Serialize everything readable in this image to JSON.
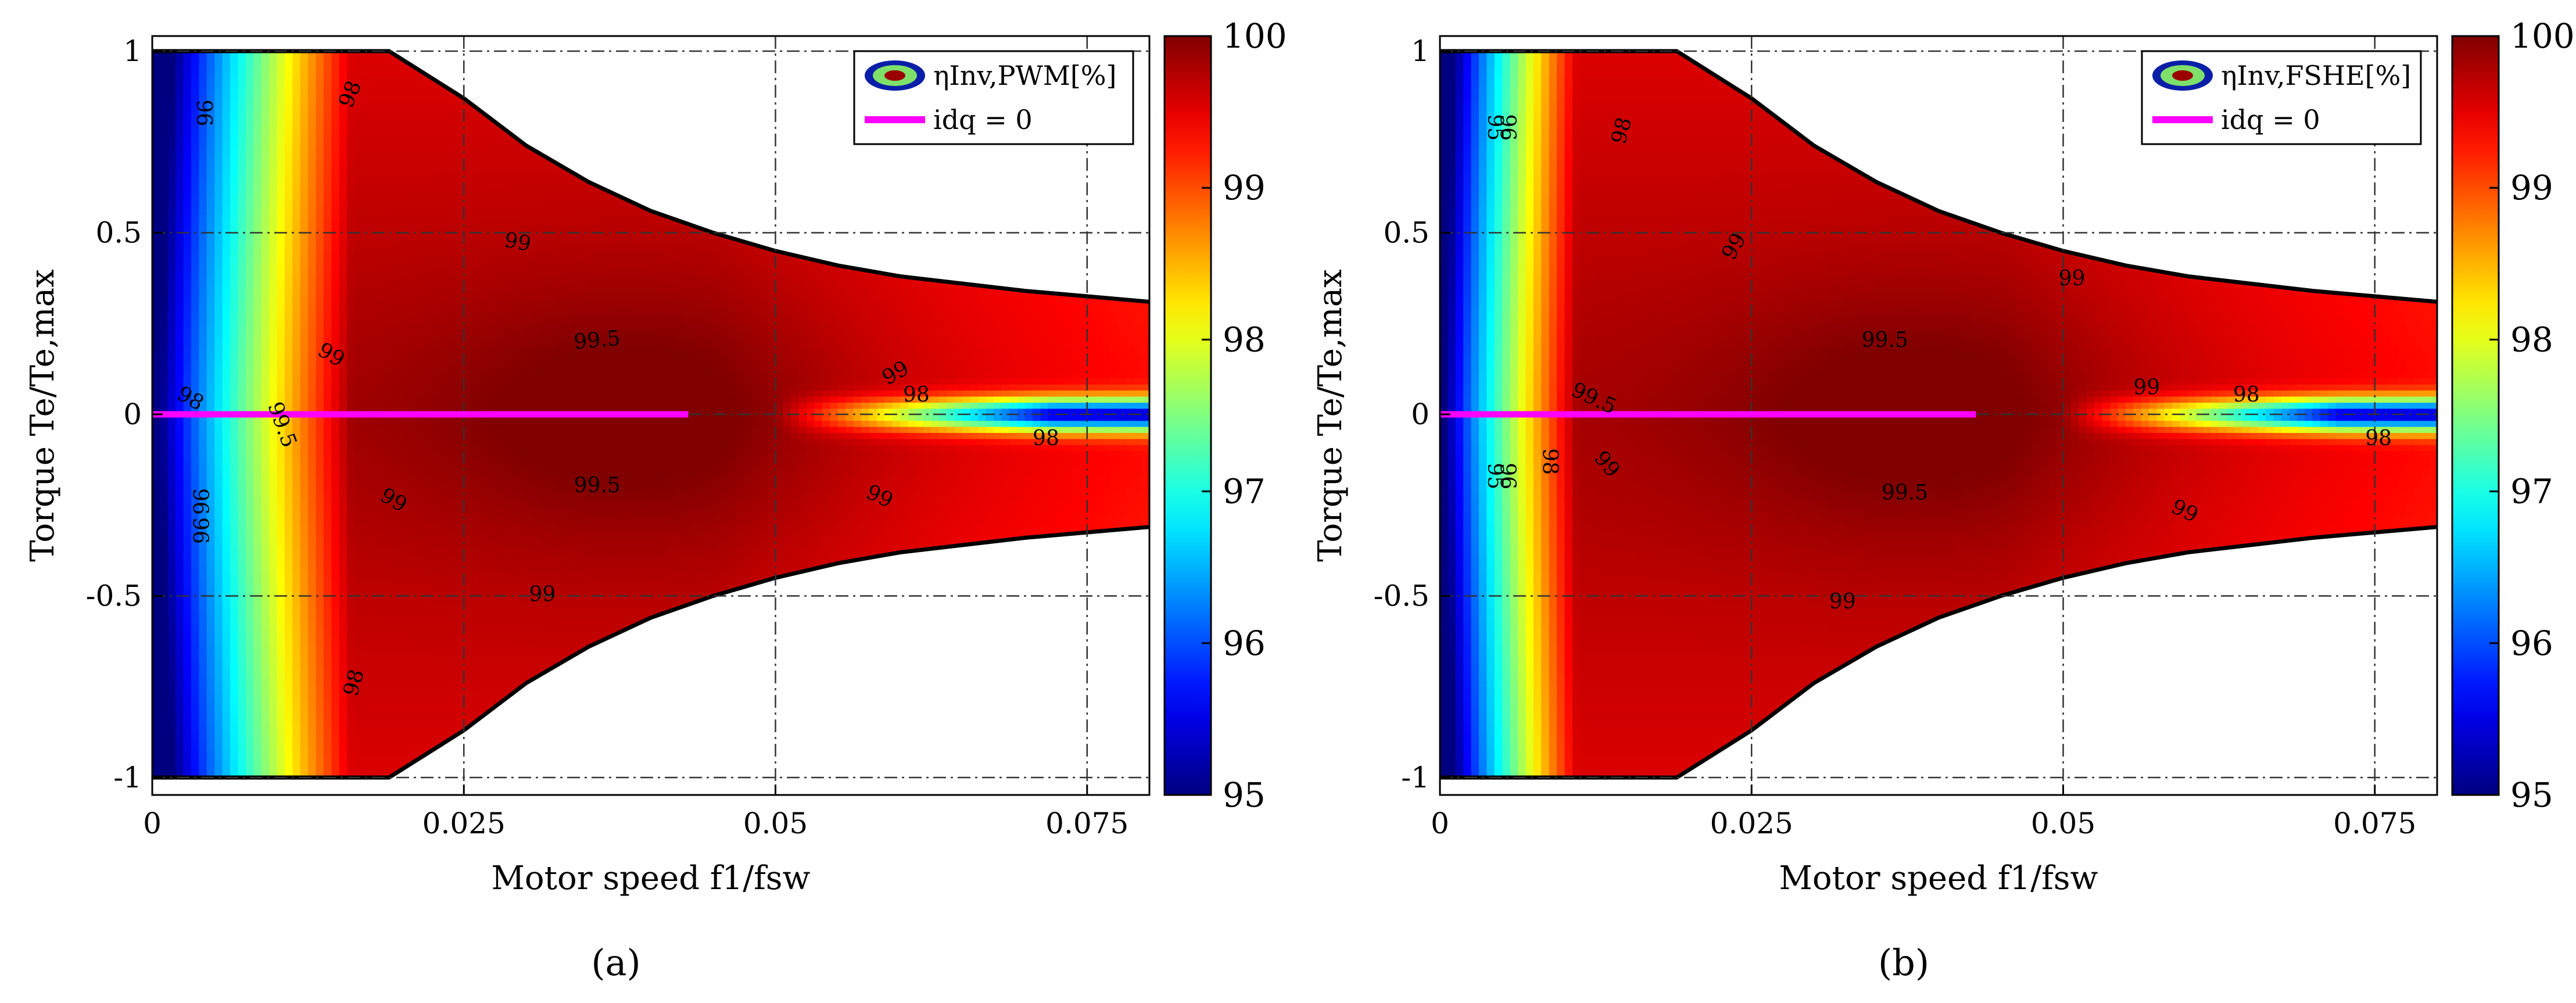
{
  "chart_data": [
    {
      "type": "heatmap",
      "panel_label": "(a)",
      "title": "",
      "xlabel": "Motor speed f1/fsw",
      "ylabel": "Torque Te/Te,max",
      "xlim": [
        0,
        0.08
      ],
      "ylim": [
        -1.05,
        1.05
      ],
      "x_ticks": [
        0,
        0.025,
        0.05,
        0.075
      ],
      "x_tick_labels": [
        "0",
        "0.025",
        "0.05",
        "0.075"
      ],
      "y_ticks": [
        1,
        0.5,
        0,
        -0.5,
        -1
      ],
      "y_tick_labels": [
        "1",
        "0.5",
        "0",
        "-0.5",
        "-1"
      ],
      "grid": true,
      "colorbar": {
        "min": 95,
        "max": 100,
        "ticks": [
          100,
          99,
          98,
          97,
          96,
          95
        ],
        "tick_labels": [
          "100",
          "99",
          "98",
          "97",
          "96",
          "95"
        ]
      },
      "legend": [
        {
          "label": "ηInv,PWM[%]",
          "kind": "contour-icon"
        },
        {
          "label": "idq = 0",
          "kind": "line",
          "color": "#ff00ff"
        }
      ],
      "zero_current_line": {
        "x_start": 0,
        "x_end": 0.043,
        "y": 0
      },
      "feasible_envelope": [
        [
          0.0,
          1.0
        ],
        [
          0.019,
          1.0
        ],
        [
          0.025,
          0.87
        ],
        [
          0.03,
          0.74
        ],
        [
          0.035,
          0.64
        ],
        [
          0.04,
          0.56
        ],
        [
          0.045,
          0.5
        ],
        [
          0.05,
          0.45
        ],
        [
          0.055,
          0.41
        ],
        [
          0.06,
          0.38
        ],
        [
          0.065,
          0.36
        ],
        [
          0.07,
          0.34
        ],
        [
          0.075,
          0.325
        ],
        [
          0.08,
          0.31
        ]
      ],
      "contours": [
        {
          "level": 96,
          "label": "96"
        },
        {
          "level": 98,
          "label": "98"
        },
        {
          "level": 99,
          "label": "99"
        },
        {
          "level": 99.5,
          "label": "99.5"
        }
      ],
      "contour_labels": [
        {
          "text": "96",
          "x": 0.004,
          "y": 0.83,
          "rot": 90
        },
        {
          "text": "98",
          "x": 0.016,
          "y": 0.88,
          "rot": -68
        },
        {
          "text": "99",
          "x": 0.0293,
          "y": 0.47,
          "rot": 10
        },
        {
          "text": "99",
          "x": 0.0143,
          "y": 0.16,
          "rot": 30
        },
        {
          "text": "99.5",
          "x": 0.0357,
          "y": 0.2,
          "rot": -5
        },
        {
          "text": "98",
          "x": 0.003,
          "y": 0.04,
          "rot": 30
        },
        {
          "text": "99.5",
          "x": 0.0103,
          "y": -0.03,
          "rot": 70
        },
        {
          "text": "99.5",
          "x": 0.0357,
          "y": -0.2,
          "rot": 0
        },
        {
          "text": "99",
          "x": 0.0193,
          "y": -0.24,
          "rot": 30
        },
        {
          "text": "99",
          "x": 0.0313,
          "y": -0.5,
          "rot": 0
        },
        {
          "text": "99",
          "x": 0.0597,
          "y": 0.11,
          "rot": -30
        },
        {
          "text": "98",
          "x": 0.0613,
          "y": 0.05,
          "rot": 0
        },
        {
          "text": "98",
          "x": 0.0717,
          "y": -0.07,
          "rot": 0
        },
        {
          "text": "99",
          "x": 0.0583,
          "y": -0.23,
          "rot": 25
        },
        {
          "text": "96",
          "x": 0.0037,
          "y": -0.24,
          "rot": 90
        },
        {
          "text": "96",
          "x": 0.0037,
          "y": -0.32,
          "rot": 90
        },
        {
          "text": "98",
          "x": 0.0163,
          "y": -0.74,
          "rot": -75
        }
      ]
    },
    {
      "type": "heatmap",
      "panel_label": "(b)",
      "title": "",
      "xlabel": "Motor speed f1/fsw",
      "ylabel": "Torque Te/Te,max",
      "xlim": [
        0,
        0.08
      ],
      "ylim": [
        -1.05,
        1.05
      ],
      "x_ticks": [
        0,
        0.025,
        0.05,
        0.075
      ],
      "x_tick_labels": [
        "0",
        "0.025",
        "0.05",
        "0.075"
      ],
      "y_ticks": [
        1,
        0.5,
        0,
        -0.5,
        -1
      ],
      "y_tick_labels": [
        "1",
        "0.5",
        "0",
        "-0.5",
        "-1"
      ],
      "grid": true,
      "colorbar": {
        "min": 95,
        "max": 100,
        "ticks": [
          100,
          99,
          98,
          97,
          96,
          95
        ],
        "tick_labels": [
          "100",
          "99",
          "98",
          "97",
          "96",
          "95"
        ]
      },
      "legend": [
        {
          "label": "ηInv,FSHE[%]",
          "kind": "contour-icon"
        },
        {
          "label": "idq = 0",
          "kind": "line",
          "color": "#ff00ff"
        }
      ],
      "zero_current_line": {
        "x_start": 0,
        "x_end": 0.043,
        "y": 0
      },
      "feasible_envelope": [
        [
          0.0,
          1.0
        ],
        [
          0.019,
          1.0
        ],
        [
          0.025,
          0.87
        ],
        [
          0.03,
          0.74
        ],
        [
          0.035,
          0.64
        ],
        [
          0.04,
          0.56
        ],
        [
          0.045,
          0.5
        ],
        [
          0.05,
          0.45
        ],
        [
          0.055,
          0.41
        ],
        [
          0.06,
          0.38
        ],
        [
          0.065,
          0.36
        ],
        [
          0.07,
          0.34
        ],
        [
          0.075,
          0.325
        ],
        [
          0.08,
          0.31
        ]
      ],
      "contours": [
        {
          "level": 96,
          "label": "96"
        },
        {
          "level": 98,
          "label": "98"
        },
        {
          "level": 99,
          "label": "99"
        },
        {
          "level": 99.5,
          "label": "99.5"
        }
      ],
      "contour_labels": [
        {
          "text": "95",
          "x": 0.0043,
          "y": 0.79,
          "rot": 90
        },
        {
          "text": "96",
          "x": 0.0053,
          "y": 0.79,
          "rot": 90
        },
        {
          "text": "98",
          "x": 0.0147,
          "y": 0.78,
          "rot": -75
        },
        {
          "text": "99",
          "x": 0.0237,
          "y": 0.46,
          "rot": -60
        },
        {
          "text": "99",
          "x": 0.0507,
          "y": 0.37,
          "rot": 0
        },
        {
          "text": "99.5",
          "x": 0.0357,
          "y": 0.2,
          "rot": 0
        },
        {
          "text": "99.5",
          "x": 0.0123,
          "y": 0.04,
          "rot": 25
        },
        {
          "text": "99",
          "x": 0.0567,
          "y": 0.07,
          "rot": 0
        },
        {
          "text": "98",
          "x": 0.0647,
          "y": 0.05,
          "rot": 0
        },
        {
          "text": "98",
          "x": 0.0753,
          "y": -0.07,
          "rot": 0
        },
        {
          "text": "98",
          "x": 0.0087,
          "y": -0.13,
          "rot": 90
        },
        {
          "text": "99",
          "x": 0.0133,
          "y": -0.14,
          "rot": 50
        },
        {
          "text": "99.5",
          "x": 0.0373,
          "y": -0.22,
          "rot": 0
        },
        {
          "text": "99",
          "x": 0.0597,
          "y": -0.27,
          "rot": 25
        },
        {
          "text": "99",
          "x": 0.0323,
          "y": -0.52,
          "rot": 0
        },
        {
          "text": "95",
          "x": 0.0043,
          "y": -0.17,
          "rot": 90
        },
        {
          "text": "96",
          "x": 0.0053,
          "y": -0.17,
          "rot": 90
        }
      ]
    }
  ]
}
